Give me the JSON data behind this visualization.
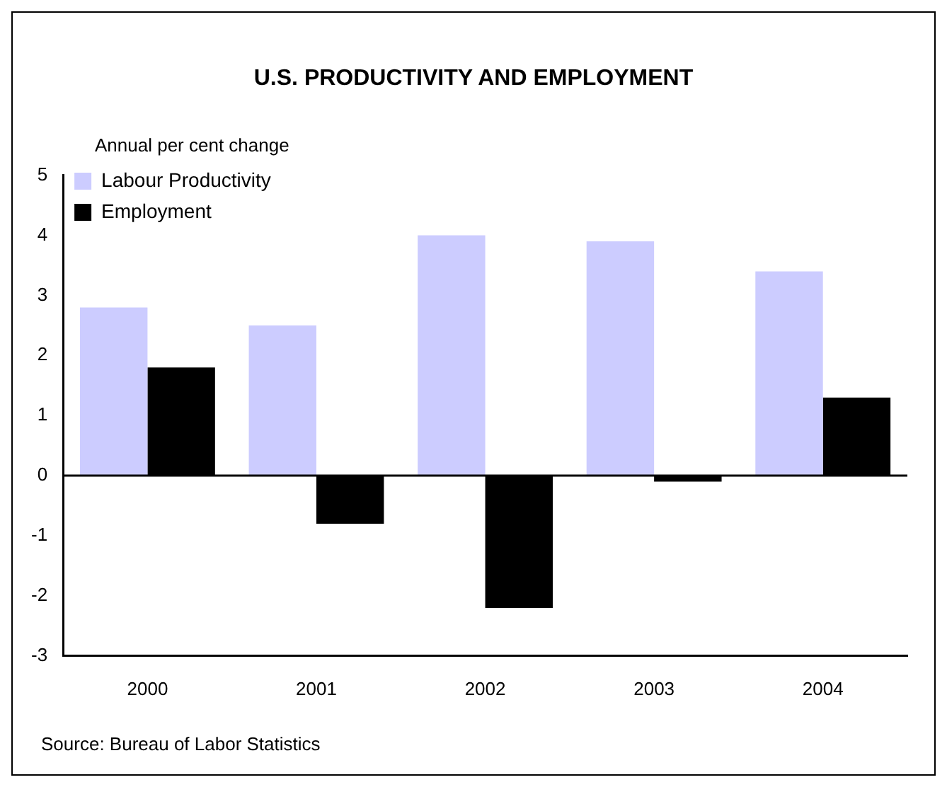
{
  "chart_data": {
    "type": "bar",
    "title": "U.S. PRODUCTIVITY AND EMPLOYMENT",
    "ylabel": "Annual per cent change",
    "categories": [
      "2000",
      "2001",
      "2002",
      "2003",
      "2004"
    ],
    "series": [
      {
        "name": "Labour Productivity",
        "color": "#ccccff",
        "values": [
          2.8,
          2.5,
          4.0,
          3.9,
          3.4
        ]
      },
      {
        "name": "Employment",
        "color": "#000000",
        "values": [
          1.8,
          -0.8,
          -2.2,
          -0.1,
          1.3
        ]
      }
    ],
    "ref_lines": [
      {
        "axis": "y",
        "value": 0,
        "color": "#000000"
      }
    ],
    "ylim": [
      -3,
      5
    ],
    "yticks": [
      -3,
      -2,
      -1,
      0,
      1,
      2,
      3,
      4,
      5
    ],
    "grid": false,
    "legend": "top left",
    "annotations": [
      "Source: Bureau of Labor Statistics"
    ]
  }
}
